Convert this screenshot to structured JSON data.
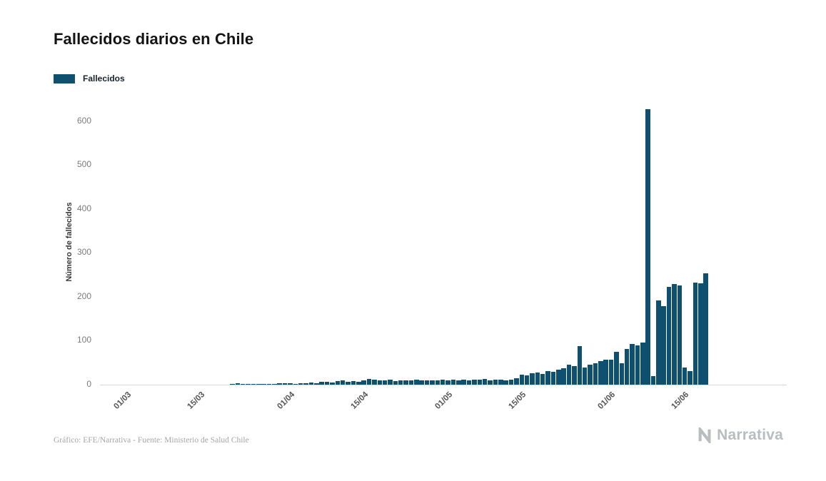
{
  "title": "Fallecidos diarios en Chile",
  "legend": {
    "label": "Fallecidos"
  },
  "footer": {
    "credit": "Gráfico: EFE/Narrativa - Fuente: Ministerio de Salud Chile",
    "logo_text": "Narrativa"
  },
  "colors": {
    "bar": "#0f506e",
    "baseline": "#d7d7d7",
    "y_tick_text": "#7b7b7b",
    "x_tick_text": "#565656",
    "title_text": "#141414",
    "credit_text": "#a6a6a6",
    "logo": "#b9bdc0"
  },
  "chart_data": {
    "type": "bar",
    "title": "Fallecidos diarios en Chile",
    "series_name": "Fallecidos",
    "xlabel": "",
    "ylabel": "Número de fallecidos",
    "ylim": [
      0,
      650
    ],
    "y_ticks": [
      0,
      100,
      200,
      300,
      400,
      500,
      600
    ],
    "x_ticks": [
      {
        "label": "01/03",
        "day": 0
      },
      {
        "label": "15/03",
        "day": 14
      },
      {
        "label": "01/04",
        "day": 31
      },
      {
        "label": "15/04",
        "day": 45
      },
      {
        "label": "01/05",
        "day": 61
      },
      {
        "label": "15/05",
        "day": 75
      },
      {
        "label": "01/06",
        "day": 92
      },
      {
        "label": "15/06",
        "day": 106
      }
    ],
    "grid": false,
    "legend_position": "top-left",
    "bar_color": "#0f506e",
    "peak_value": 627,
    "values": [
      0,
      0,
      0,
      0,
      0,
      0,
      0,
      0,
      0,
      0,
      0,
      0,
      0,
      0,
      0,
      0,
      0,
      0,
      0,
      0,
      1,
      4,
      2,
      1,
      2,
      1,
      2,
      2,
      2,
      3,
      4,
      3,
      2,
      4,
      3,
      5,
      4,
      6,
      7,
      5,
      8,
      9,
      7,
      8,
      6,
      10,
      13,
      12,
      9,
      10,
      11,
      8,
      9,
      10,
      9,
      11,
      10,
      9,
      10,
      9,
      12,
      10,
      12,
      9,
      11,
      10,
      12,
      11,
      13,
      10,
      12,
      11,
      9,
      12,
      14,
      23,
      21,
      26,
      28,
      24,
      31,
      29,
      34,
      38,
      45,
      43,
      88,
      39,
      46,
      49,
      54,
      57,
      57,
      75,
      49,
      81,
      92,
      89,
      96,
      627,
      19,
      192,
      178,
      222,
      229,
      226,
      39,
      31,
      232,
      230,
      253
    ]
  }
}
